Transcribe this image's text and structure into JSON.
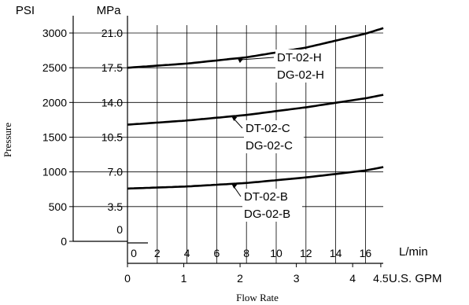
{
  "chart_data": {
    "type": "line",
    "y_axes": [
      {
        "unit": "PSI",
        "ticks": [
          "3000",
          "2500",
          "2000",
          "1500",
          "1000",
          "500",
          "0"
        ],
        "values": [
          3000,
          2500,
          2000,
          1500,
          1000,
          500,
          0
        ]
      },
      {
        "unit": "MPa",
        "ticks": [
          "21.0",
          "17.5",
          "14.0",
          "10.5",
          "7.0",
          "3.5",
          "0"
        ],
        "values": [
          21.0,
          17.5,
          14.0,
          10.5,
          7.0,
          3.5,
          0
        ]
      }
    ],
    "x_axes": [
      {
        "unit": "L/min",
        "ticks": [
          "0",
          "2",
          "4",
          "6",
          "8",
          "10",
          "12",
          "14",
          "16"
        ],
        "values": [
          0,
          2,
          4,
          6,
          8,
          10,
          12,
          14,
          16
        ]
      },
      {
        "unit": "U.S. GPM",
        "ticks": [
          "0",
          "1",
          "2",
          "3",
          "4",
          "4.5"
        ],
        "values": [
          0,
          1,
          2,
          3,
          4,
          4.5
        ]
      }
    ],
    "xlabel": "Flow Rate",
    "ylabel": "Pressure",
    "xlim_lpm": [
      0,
      17.2
    ],
    "ylim_psi": [
      0,
      3000
    ],
    "grid": true,
    "series": [
      {
        "labels": [
          "DT-02-H",
          "DG-02-H"
        ],
        "x": [
          0,
          4,
          8,
          12,
          16,
          17.2
        ],
        "y": [
          2500,
          2560,
          2650,
          2790,
          2990,
          3070
        ]
      },
      {
        "labels": [
          "DT-02-C",
          "DG-02-C"
        ],
        "x": [
          0,
          4,
          8,
          12,
          16,
          17.2
        ],
        "y": [
          1680,
          1740,
          1820,
          1930,
          2060,
          2110
        ]
      },
      {
        "labels": [
          "DT-02-B",
          "DG-02-B"
        ],
        "x": [
          0,
          4,
          8,
          12,
          16,
          17.2
        ],
        "y": [
          760,
          790,
          840,
          920,
          1020,
          1070
        ]
      }
    ]
  }
}
